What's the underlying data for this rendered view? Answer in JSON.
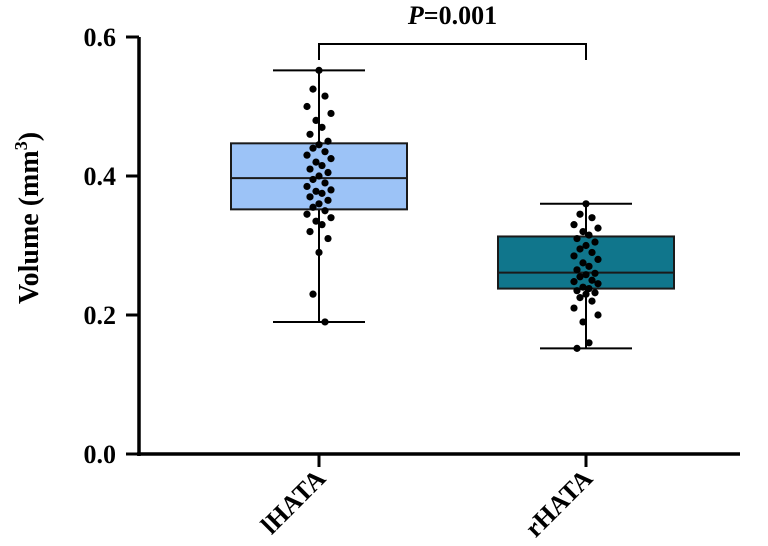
{
  "chart_data": {
    "type": "box",
    "ylabel": "Volume (mm",
    "ylabel_sup": "3",
    "ylabel_close": ")",
    "ylim": [
      0.0,
      0.6
    ],
    "yticks": [
      "0.0",
      "0.2",
      "0.4",
      "0.6"
    ],
    "ytick_values": [
      0.0,
      0.2,
      0.4,
      0.6
    ],
    "grid": false,
    "categories": [
      "lHATA",
      "rHATA"
    ],
    "series": [
      {
        "name": "lHATA",
        "color": "#9cc3f7",
        "min": 0.19,
        "q1": 0.352,
        "median": 0.397,
        "q3": 0.447,
        "max": 0.552,
        "points": [
          0.552,
          0.525,
          0.515,
          0.5,
          0.49,
          0.48,
          0.47,
          0.46,
          0.45,
          0.445,
          0.44,
          0.435,
          0.43,
          0.425,
          0.42,
          0.415,
          0.41,
          0.405,
          0.4,
          0.395,
          0.39,
          0.385,
          0.38,
          0.378,
          0.375,
          0.37,
          0.365,
          0.36,
          0.355,
          0.35,
          0.345,
          0.34,
          0.335,
          0.33,
          0.32,
          0.31,
          0.29,
          0.23,
          0.19
        ]
      },
      {
        "name": "rHATA",
        "color": "#10768c",
        "min": 0.152,
        "q1": 0.238,
        "median": 0.261,
        "q3": 0.313,
        "max": 0.36,
        "points": [
          0.36,
          0.345,
          0.34,
          0.33,
          0.325,
          0.32,
          0.315,
          0.31,
          0.305,
          0.3,
          0.295,
          0.29,
          0.285,
          0.28,
          0.275,
          0.27,
          0.265,
          0.26,
          0.258,
          0.255,
          0.25,
          0.248,
          0.245,
          0.24,
          0.238,
          0.235,
          0.232,
          0.23,
          0.225,
          0.22,
          0.21,
          0.2,
          0.19,
          0.16,
          0.152
        ]
      }
    ],
    "annotation": {
      "italic": "P",
      "rest": "=0.001",
      "between": [
        "lHATA",
        "rHATA"
      ]
    }
  }
}
